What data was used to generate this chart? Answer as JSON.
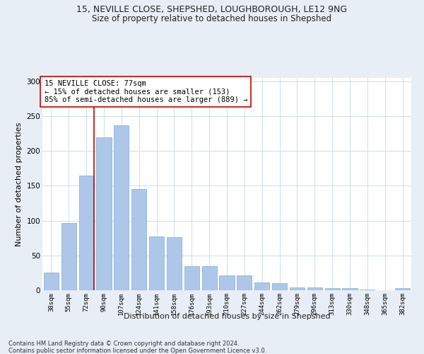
{
  "title1": "15, NEVILLE CLOSE, SHEPSHED, LOUGHBOROUGH, LE12 9NG",
  "title2": "Size of property relative to detached houses in Shepshed",
  "xlabel": "Distribution of detached houses by size in Shepshed",
  "ylabel": "Number of detached properties",
  "categories": [
    "38sqm",
    "55sqm",
    "72sqm",
    "90sqm",
    "107sqm",
    "124sqm",
    "141sqm",
    "158sqm",
    "176sqm",
    "193sqm",
    "210sqm",
    "227sqm",
    "244sqm",
    "262sqm",
    "279sqm",
    "296sqm",
    "313sqm",
    "330sqm",
    "348sqm",
    "365sqm",
    "382sqm"
  ],
  "values": [
    25,
    97,
    165,
    220,
    237,
    145,
    77,
    76,
    35,
    35,
    21,
    21,
    11,
    10,
    4,
    4,
    3,
    3,
    1,
    0,
    3
  ],
  "bar_color": "#aec6e8",
  "bar_edge_color": "#7aafd4",
  "vline_x_index": 2,
  "vline_color": "#cc0000",
  "annotation_text": "15 NEVILLE CLOSE: 77sqm\n← 15% of detached houses are smaller (153)\n85% of semi-detached houses are larger (889) →",
  "annotation_box_color": "#ffffff",
  "annotation_box_edge": "#cc0000",
  "ylim": [
    0,
    305
  ],
  "yticks": [
    0,
    50,
    100,
    150,
    200,
    250,
    300
  ],
  "footer1": "Contains HM Land Registry data © Crown copyright and database right 2024.",
  "footer2": "Contains public sector information licensed under the Open Government Licence v3.0.",
  "bg_color": "#e8eef5",
  "plot_bg_color": "#ffffff",
  "grid_color": "#c8d8e8"
}
